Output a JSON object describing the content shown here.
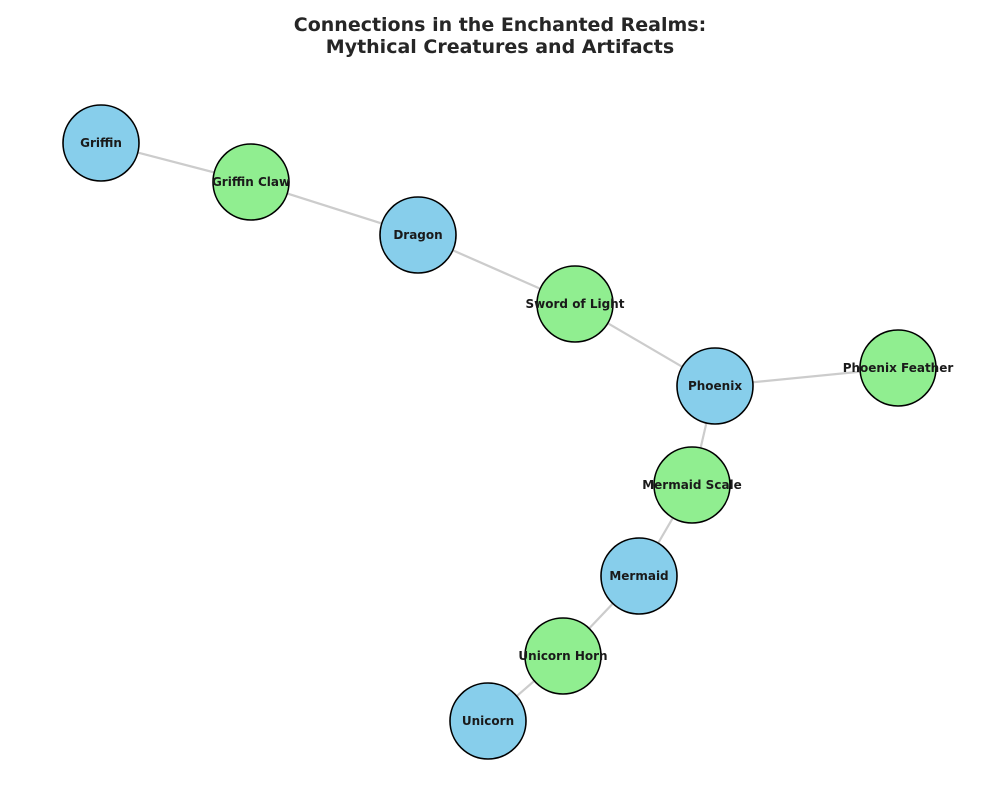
{
  "title": {
    "line1": "Connections in the Enchanted Realms:",
    "line2": "Mythical Creatures and Artifacts"
  },
  "colors": {
    "creature": "#87ceeb",
    "artifact": "#90ee90",
    "edge": "#cccccc",
    "node_border": "#000000"
  },
  "nodes": [
    {
      "id": "griffin",
      "label": "Griffin",
      "category": "creature"
    },
    {
      "id": "griffin-claw",
      "label": "Griffin Claw",
      "category": "artifact"
    },
    {
      "id": "dragon",
      "label": "Dragon",
      "category": "creature"
    },
    {
      "id": "sword-of-light",
      "label": "Sword of Light",
      "category": "artifact"
    },
    {
      "id": "phoenix",
      "label": "Phoenix",
      "category": "creature"
    },
    {
      "id": "phoenix-feather",
      "label": "Phoenix Feather",
      "category": "artifact"
    },
    {
      "id": "mermaid-scale",
      "label": "Mermaid Scale",
      "category": "artifact"
    },
    {
      "id": "mermaid",
      "label": "Mermaid",
      "category": "creature"
    },
    {
      "id": "unicorn-horn",
      "label": "Unicorn Horn",
      "category": "artifact"
    },
    {
      "id": "unicorn",
      "label": "Unicorn",
      "category": "creature"
    }
  ],
  "edges": [
    {
      "source": "griffin",
      "target": "griffin-claw"
    },
    {
      "source": "griffin-claw",
      "target": "dragon"
    },
    {
      "source": "dragon",
      "target": "sword-of-light"
    },
    {
      "source": "sword-of-light",
      "target": "phoenix"
    },
    {
      "source": "phoenix",
      "target": "phoenix-feather"
    },
    {
      "source": "phoenix",
      "target": "mermaid-scale"
    },
    {
      "source": "mermaid-scale",
      "target": "mermaid"
    },
    {
      "source": "mermaid",
      "target": "unicorn-horn"
    },
    {
      "source": "unicorn-horn",
      "target": "unicorn"
    }
  ]
}
